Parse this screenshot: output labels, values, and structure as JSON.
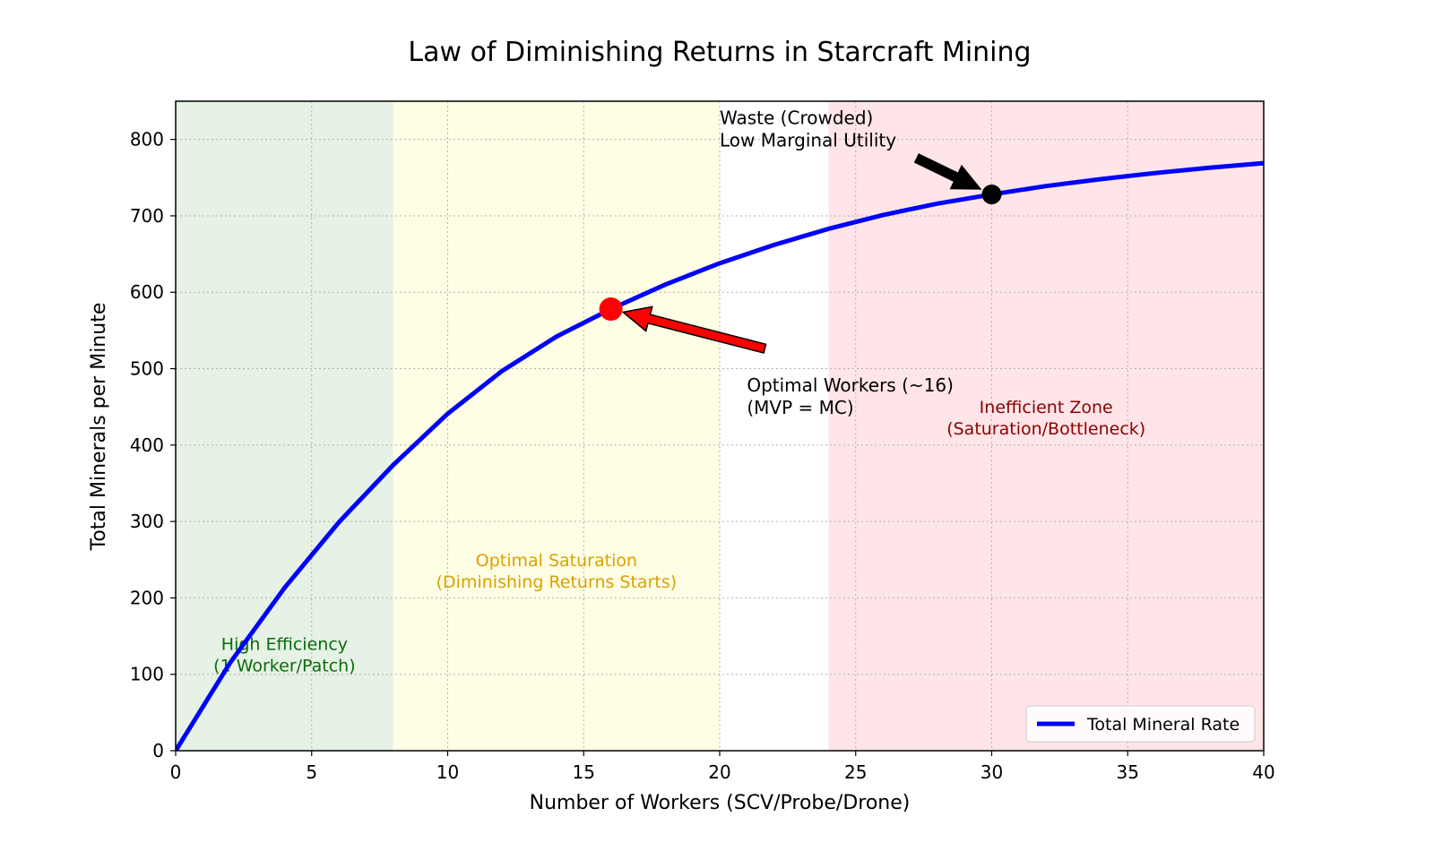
{
  "chart_data": {
    "type": "line",
    "title": "Law of Diminishing Returns in Starcraft Mining",
    "xlabel": "Number of Workers (SCV/Probe/Drone)",
    "ylabel": "Total Minerals per Minute",
    "xlim": [
      0,
      40
    ],
    "ylim": [
      0,
      850
    ],
    "xticks": [
      0,
      5,
      10,
      15,
      20,
      25,
      30,
      35,
      40
    ],
    "yticks": [
      0,
      100,
      200,
      300,
      400,
      500,
      600,
      700,
      800
    ],
    "grid": true,
    "legend_position": "bottom-right",
    "series": [
      {
        "name": "Total Mineral Rate",
        "color": "#0000ff",
        "x": [
          0,
          2,
          4,
          6,
          8,
          10,
          12,
          14,
          16,
          18,
          20,
          22,
          24,
          26,
          28,
          30,
          32,
          34,
          36,
          38,
          40
        ],
        "y": [
          0,
          115,
          213,
          299,
          374,
          441,
          497,
          542,
          578,
          610,
          638,
          662,
          683,
          701,
          716,
          728,
          739,
          748,
          756,
          763,
          769
        ]
      }
    ],
    "zones": [
      {
        "x0": 0,
        "x1": 8,
        "color": "#e5f2e5",
        "label_lines": [
          "High Efficiency",
          "(1 Worker/Patch)"
        ],
        "label_color": "#0b6b0b",
        "label_x": 4,
        "label_y": 120
      },
      {
        "x0": 8,
        "x1": 20,
        "color": "#fefee5",
        "label_lines": [
          "Optimal Saturation",
          "(Diminishing Returns Starts)"
        ],
        "label_color": "#d9a100",
        "label_x": 14,
        "label_y": 230
      },
      {
        "x0": 24,
        "x1": 40,
        "color": "#ffe5e8",
        "label_lines": [
          "Inefficient Zone",
          "(Saturation/Bottleneck)"
        ],
        "label_color": "#8b0000",
        "label_x": 32,
        "label_y": 430
      }
    ],
    "annotations": [
      {
        "name": "optimal",
        "point": [
          16,
          578
        ],
        "marker_color": "#ff0000",
        "arrow_color": "#ff0000",
        "text_lines": [
          "Optimal Workers (~16)",
          "(MVP = MC)"
        ],
        "text_at": [
          21,
          470
        ]
      },
      {
        "name": "waste",
        "point": [
          30,
          728
        ],
        "marker_color": "#000000",
        "arrow_color": "#000000",
        "text_lines": [
          "Waste (Crowded)",
          "Low Marginal Utility"
        ],
        "text_at": [
          20,
          820
        ]
      }
    ]
  }
}
